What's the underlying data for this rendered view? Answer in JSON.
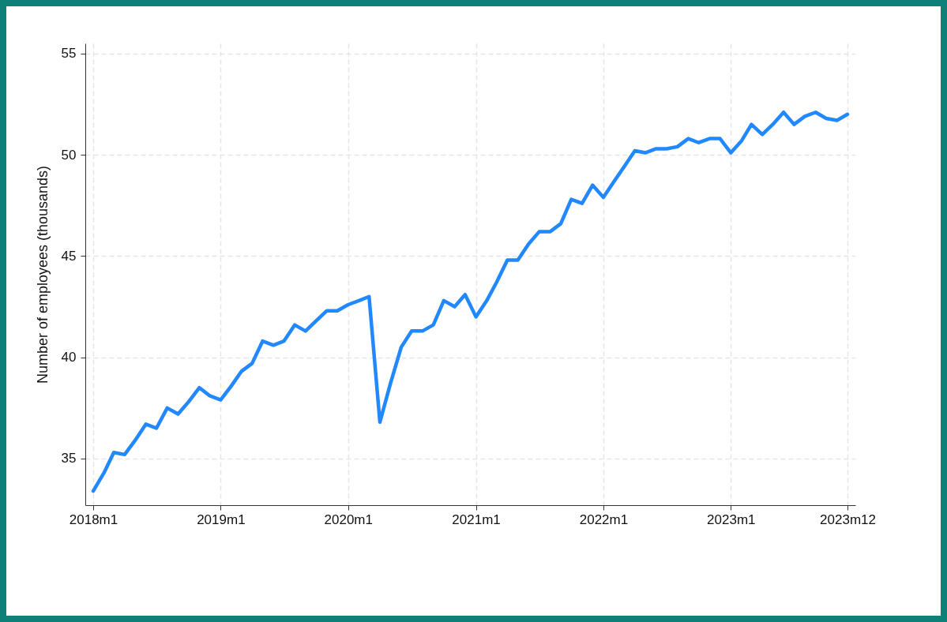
{
  "chart_data": {
    "type": "line",
    "ylabel": "Number of employees (thousands)",
    "x": [
      "2018-01",
      "2018-02",
      "2018-03",
      "2018-04",
      "2018-05",
      "2018-06",
      "2018-07",
      "2018-08",
      "2018-09",
      "2018-10",
      "2018-11",
      "2018-12",
      "2019-01",
      "2019-02",
      "2019-03",
      "2019-04",
      "2019-05",
      "2019-06",
      "2019-07",
      "2019-08",
      "2019-09",
      "2019-10",
      "2019-11",
      "2019-12",
      "2020-01",
      "2020-02",
      "2020-03",
      "2020-04",
      "2020-05",
      "2020-06",
      "2020-07",
      "2020-08",
      "2020-09",
      "2020-10",
      "2020-11",
      "2020-12",
      "2021-01",
      "2021-02",
      "2021-03",
      "2021-04",
      "2021-05",
      "2021-06",
      "2021-07",
      "2021-08",
      "2021-09",
      "2021-10",
      "2021-11",
      "2021-12",
      "2022-01",
      "2022-02",
      "2022-03",
      "2022-04",
      "2022-05",
      "2022-06",
      "2022-07",
      "2022-08",
      "2022-09",
      "2022-10",
      "2022-11",
      "2022-12",
      "2023-01",
      "2023-02",
      "2023-03",
      "2023-04",
      "2023-05",
      "2023-06",
      "2023-07",
      "2023-08",
      "2023-09",
      "2023-10",
      "2023-11",
      "2023-12"
    ],
    "series": [
      {
        "color": "#2288ff",
        "values": [
          33.4,
          34.3,
          35.3,
          35.2,
          35.9,
          36.7,
          36.5,
          37.5,
          37.2,
          37.8,
          38.5,
          38.1,
          37.9,
          38.6,
          39.3,
          39.7,
          40.8,
          40.6,
          40.8,
          41.6,
          41.3,
          41.8,
          42.3,
          42.3,
          42.6,
          42.8,
          43.0,
          36.8,
          38.7,
          40.5,
          41.3,
          41.3,
          41.6,
          42.8,
          42.5,
          43.1,
          42.0,
          42.8,
          43.7,
          44.8,
          44.8,
          45.6,
          46.2,
          46.2,
          46.6,
          47.8,
          47.6,
          48.5,
          47.9,
          48.7,
          49.4,
          50.2,
          50.1,
          50.3,
          50.3,
          50.4,
          50.8,
          50.6,
          50.8,
          50.8,
          50.1,
          50.7,
          51.5,
          51.0,
          51.5,
          52.1,
          51.5,
          51.9,
          52.1,
          51.8,
          51.7,
          52.0
        ]
      }
    ],
    "xlim": [
      "2018-01",
      "2023-12"
    ],
    "xticks": [
      {
        "value": "2018-01",
        "label": "2018m1"
      },
      {
        "value": "2019-01",
        "label": "2019m1"
      },
      {
        "value": "2020-01",
        "label": "2020m1"
      },
      {
        "value": "2021-01",
        "label": "2021m1"
      },
      {
        "value": "2022-01",
        "label": "2022m1"
      },
      {
        "value": "2023-01",
        "label": "2023m1"
      },
      {
        "value": "2023-12",
        "label": "2023m12"
      }
    ],
    "ylim": [
      32.7,
      55.5
    ],
    "yticks": [
      35,
      40,
      45,
      50,
      55
    ],
    "grid": true,
    "line_style": "solid",
    "marker": "none"
  }
}
